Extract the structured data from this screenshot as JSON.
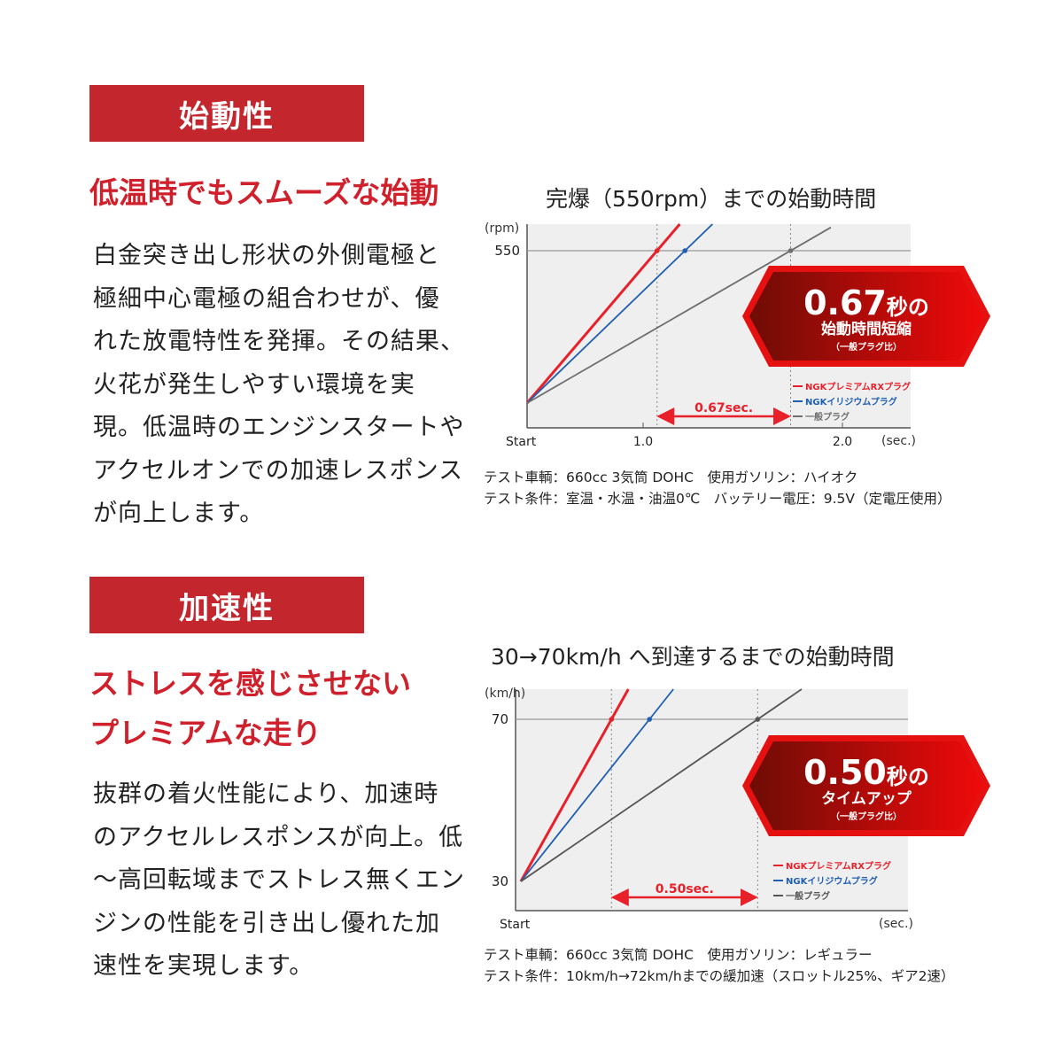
{
  "sections": [
    {
      "label": "始動性",
      "headline": [
        "低温時でもスムーズな始動"
      ],
      "body": [
        "白金突き出し形状の外側電極と",
        "極細中心電極の組合わせが、優",
        "れた放電特性を発揮。その結果、",
        "火花が発生しやすい環境を実",
        "現。低温時のエンジンスタートや",
        "アクセルオンでの加速レスポンス",
        "が向上します。"
      ],
      "notes": [
        "テスト車輌：660cc 3気筒 DOHC　使用ガソリン：ハイオク",
        "テスト条件：室温・水温・油温0℃　バッテリー電圧：9.5V（定電圧使用）"
      ]
    },
    {
      "label": "加速性",
      "headline": [
        "ストレスを感じさせない",
        "プレミアムな走り"
      ],
      "body": [
        "抜群の着火性能により、加速時",
        "のアクセルレスポンスが向上。低",
        "〜高回転域までストレス無くエン",
        "ジンの性能を引き出し優れた加",
        "速性を実現します。"
      ],
      "notes": [
        "テスト車輌：660cc 3気筒 DOHC　使用ガソリン：レギュラー",
        "テスト条件：10km/h→72km/hまでの緩加速（スロットル25%、ギア2速）"
      ]
    }
  ],
  "chart_data": [
    {
      "type": "line",
      "title": "完爆（550rpm）までの始動時間",
      "ylabel": "(rpm)",
      "xlabel": "(sec.)",
      "x_origin_label": "Start",
      "x_ticks": [
        "1.0",
        "2.0"
      ],
      "y_ticks": [
        "550"
      ],
      "target_y": 550,
      "series": [
        {
          "name": "NGKプレミアムRXプラグ",
          "color": "#e8202a",
          "reach_time": 1.07
        },
        {
          "name": "NGKイリジウムプラグ",
          "color": "#1f5fb0",
          "reach_time": 1.21
        },
        {
          "name": "一般プラグ",
          "color": "#6e6e6e",
          "reach_time": 1.74
        }
      ],
      "difference_label": "0.67sec.",
      "badge": {
        "big": "0.67",
        "unit": "秒の",
        "line2": "始動時間短縮",
        "line3": "（一般プラグ比）"
      },
      "legend_position": "bottom-right",
      "grid": false
    },
    {
      "type": "line",
      "title": "30→70km/h へ到達するまでの始動時間",
      "ylabel": "(km/h)",
      "xlabel": "(sec.)",
      "x_origin_label": "Start",
      "x_ticks": [],
      "y_ticks": [
        "30",
        "70"
      ],
      "start_y": 30,
      "target_y": 70,
      "series": [
        {
          "name": "NGKプレミアムRXプラグ",
          "color": "#e8202a",
          "reach_time": 0.31
        },
        {
          "name": "NGKイリジウムプラグ",
          "color": "#1f5fb0",
          "reach_time": 0.44
        },
        {
          "name": "一般プラグ",
          "color": "#555555",
          "reach_time": 0.81
        }
      ],
      "difference_label": "0.50sec.",
      "badge": {
        "big": "0.50",
        "unit": "秒の",
        "line2": "タイムアップ",
        "line3": "（一般プラグ比）"
      },
      "legend_position": "bottom-right",
      "grid": false
    }
  ]
}
